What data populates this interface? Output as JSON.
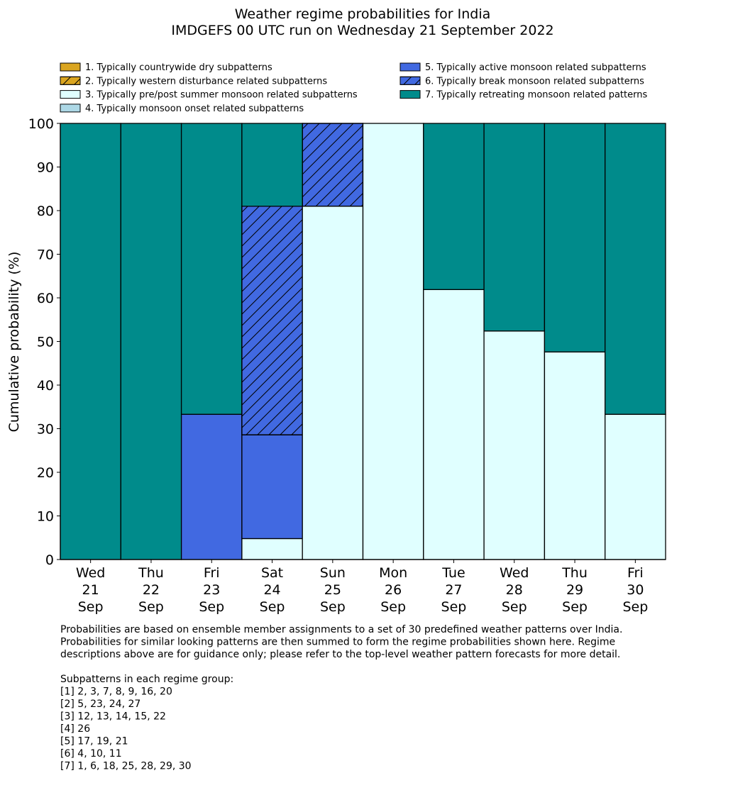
{
  "chart_data": {
    "type": "bar",
    "stacked": true,
    "title": "Weather regime probabilities for India",
    "subtitle": "IMDGEFS 00 UTC run on Wednesday 21 September 2022",
    "ylabel": "Cumulative probability (%)",
    "xlabel": "",
    "ylim": [
      0,
      100
    ],
    "yticks": [
      0,
      10,
      20,
      30,
      40,
      50,
      60,
      70,
      80,
      90,
      100
    ],
    "grid": false,
    "legend_placement": "top",
    "categories": [
      [
        "Wed",
        "21",
        "Sep"
      ],
      [
        "Thu",
        "22",
        "Sep"
      ],
      [
        "Fri",
        "23",
        "Sep"
      ],
      [
        "Sat",
        "24",
        "Sep"
      ],
      [
        "Sun",
        "25",
        "Sep"
      ],
      [
        "Mon",
        "26",
        "Sep"
      ],
      [
        "Tue",
        "27",
        "Sep"
      ],
      [
        "Wed",
        "28",
        "Sep"
      ],
      [
        "Thu",
        "29",
        "Sep"
      ],
      [
        "Fri",
        "30",
        "Sep"
      ]
    ],
    "series": [
      {
        "name": "1. Typically countrywide dry subpatterns",
        "color": "#DAA520",
        "hatch": false,
        "values": [
          0,
          0,
          0,
          0,
          0,
          0,
          0,
          0,
          0,
          0
        ]
      },
      {
        "name": "2. Typically western disturbance related subpatterns",
        "color": "#DAA520",
        "hatch": true,
        "values": [
          0,
          0,
          0,
          0,
          0,
          0,
          0,
          0,
          0,
          0
        ]
      },
      {
        "name": "3. Typically pre/post summer monsoon related subpatterns",
        "color": "#E0FFFF",
        "hatch": false,
        "values": [
          0,
          0,
          0,
          4.8,
          81.0,
          100,
          61.9,
          52.4,
          47.6,
          33.3
        ]
      },
      {
        "name": "4. Typically monsoon onset related subpatterns",
        "color": "#ADD8E6",
        "hatch": false,
        "values": [
          0,
          0,
          0,
          0,
          0,
          0,
          0,
          0,
          0,
          0
        ]
      },
      {
        "name": "5. Typically active monsoon related subpatterns",
        "color": "#4169E1",
        "hatch": false,
        "values": [
          0,
          0,
          33.3,
          23.8,
          0,
          0,
          0,
          0,
          0,
          0
        ]
      },
      {
        "name": "6. Typically break monsoon related subpatterns",
        "color": "#4169E1",
        "hatch": true,
        "values": [
          0,
          0,
          0,
          52.4,
          19.0,
          0,
          0,
          0,
          0,
          0
        ]
      },
      {
        "name": "7. Typically retreating monsoon related patterns",
        "color": "#008B8B",
        "hatch": false,
        "values": [
          100,
          100,
          66.7,
          19.0,
          0,
          0,
          38.1,
          47.6,
          52.4,
          66.7
        ]
      }
    ]
  },
  "footer": {
    "notes": [
      "Probabilities are based on ensemble member assignments to a set of 30 predefined weather patterns over India.",
      "Probabilities for similar looking patterns are then summed to form the regime probabilities shown here. Regime",
      "descriptions above are for guidance only; please refer to the top-level weather pattern forecasts for more detail."
    ],
    "groups_heading": "Subpatterns in each regime group:",
    "groups": [
      "[1] 2, 3, 7, 8, 9, 16, 20",
      "[2] 5, 23, 24, 27",
      "[3] 12, 13, 14, 15, 22",
      "[4] 26",
      "[5] 17, 19, 21",
      "[6] 4, 10, 11",
      "[7] 1, 6, 18, 25, 28, 29, 30"
    ]
  }
}
